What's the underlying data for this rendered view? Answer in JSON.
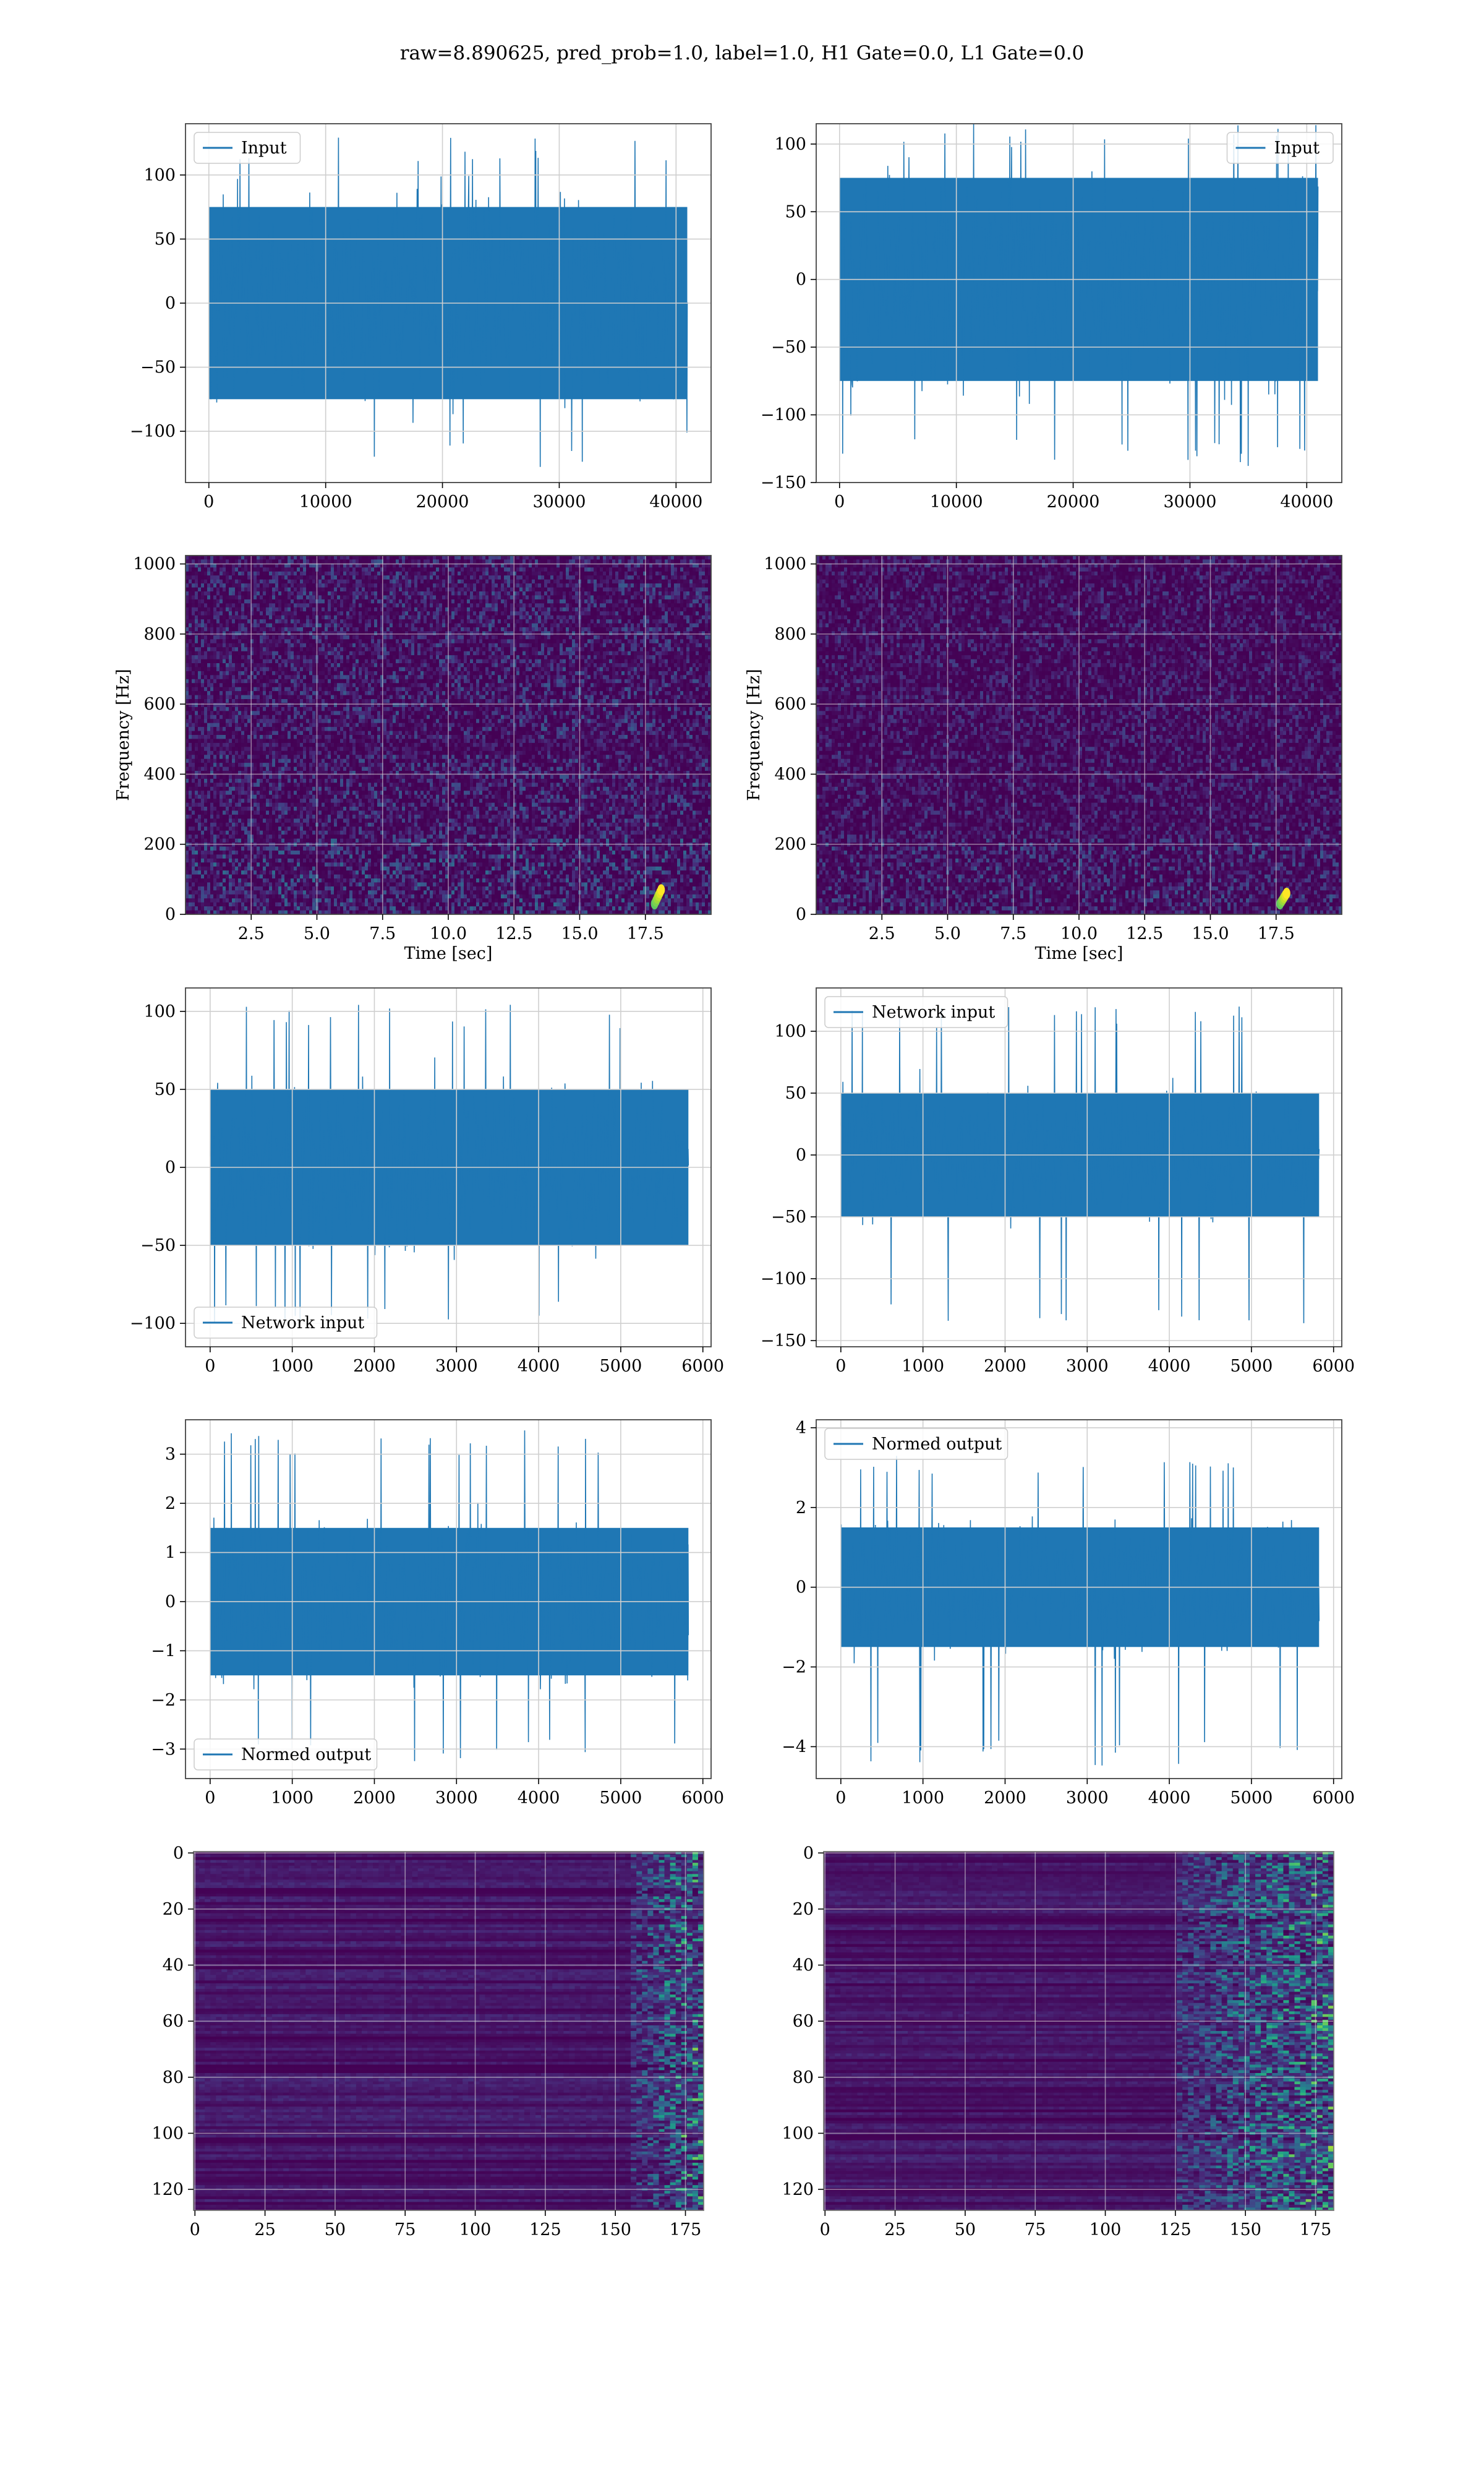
{
  "figure": {
    "title": "raw=8.890625, pred_prob=1.0, label=1.0, H1 Gate=0.0, L1 Gate=0.0"
  },
  "chart_data": [
    {
      "id": "h1-input",
      "type": "line",
      "legend_loc": "upper left",
      "series": [
        {
          "name": "Input",
          "color": "#1f77b4",
          "n_points": 40960,
          "summary": {
            "envelope": 75,
            "spike_max": 130,
            "spike_min": -128
          }
        }
      ],
      "xlim": [
        -2000,
        43000
      ],
      "ylim": [
        -140,
        140
      ],
      "xticks": [
        0,
        10000,
        20000,
        30000,
        40000
      ],
      "yticks": [
        -100,
        -50,
        0,
        50,
        100
      ],
      "xlabel": "",
      "ylabel": "",
      "grid": true
    },
    {
      "id": "l1-input",
      "type": "line",
      "legend_loc": "upper right",
      "series": [
        {
          "name": "Input",
          "color": "#1f77b4",
          "n_points": 40960,
          "summary": {
            "envelope": 75,
            "spike_max": 115,
            "spike_min": -138
          }
        }
      ],
      "xlim": [
        -2000,
        43000
      ],
      "ylim": [
        -150,
        115
      ],
      "xticks": [
        0,
        10000,
        20000,
        30000,
        40000
      ],
      "yticks": [
        -150,
        -100,
        -50,
        0,
        50,
        100
      ],
      "xlabel": "",
      "ylabel": "",
      "grid": true
    },
    {
      "id": "h1-spectrogram",
      "type": "heatmap",
      "colormap": "viridis",
      "xlim": [
        0,
        20
      ],
      "ylim": [
        0,
        1024
      ],
      "xticks": [
        2.5,
        5.0,
        7.5,
        10.0,
        12.5,
        15.0,
        17.5
      ],
      "yticks": [
        0,
        200,
        400,
        600,
        800,
        1000
      ],
      "xlabel": "Time [sec]",
      "ylabel": "Frequency [Hz]",
      "grid": true,
      "hot_spot": {
        "time_sec": 18.0,
        "freq_hz": [
          30,
          70
        ]
      }
    },
    {
      "id": "l1-spectrogram",
      "type": "heatmap",
      "colormap": "viridis",
      "xlim": [
        0,
        20
      ],
      "ylim": [
        0,
        1024
      ],
      "xticks": [
        2.5,
        5.0,
        7.5,
        10.0,
        12.5,
        15.0,
        17.5
      ],
      "yticks": [
        0,
        200,
        400,
        600,
        800,
        1000
      ],
      "xlabel": "Time [sec]",
      "ylabel": "Frequency [Hz]",
      "grid": true,
      "hot_spot": {
        "time_sec": 17.8,
        "freq_hz": [
          30,
          60
        ]
      }
    },
    {
      "id": "h1-network-input",
      "type": "line",
      "legend_loc": "lower left",
      "series": [
        {
          "name": "Network input",
          "color": "#1f77b4",
          "n_points": 5824,
          "summary": {
            "envelope": 50,
            "spike_max": 105,
            "spike_min": -100
          }
        }
      ],
      "xlim": [
        -300,
        6100
      ],
      "ylim": [
        -115,
        115
      ],
      "xticks": [
        0,
        1000,
        2000,
        3000,
        4000,
        5000,
        6000
      ],
      "yticks": [
        -100,
        -50,
        0,
        50,
        100
      ],
      "xlabel": "",
      "ylabel": "",
      "grid": true
    },
    {
      "id": "l1-network-input",
      "type": "line",
      "legend_loc": "upper left",
      "series": [
        {
          "name": "Network input",
          "color": "#1f77b4",
          "n_points": 5824,
          "summary": {
            "envelope": 50,
            "spike_max": 120,
            "spike_min": -142
          }
        }
      ],
      "xlim": [
        -300,
        6100
      ],
      "ylim": [
        -155,
        135
      ],
      "xticks": [
        0,
        1000,
        2000,
        3000,
        4000,
        5000,
        6000
      ],
      "yticks": [
        -150,
        -100,
        -50,
        0,
        50,
        100
      ],
      "xlabel": "",
      "ylabel": "",
      "grid": true
    },
    {
      "id": "h1-normed-output",
      "type": "line",
      "legend_loc": "lower left",
      "series": [
        {
          "name": "Normed output",
          "color": "#1f77b4",
          "n_points": 5824,
          "summary": {
            "envelope": 1.5,
            "spike_max": 3.5,
            "spike_min": -3.3
          }
        }
      ],
      "xlim": [
        -300,
        6100
      ],
      "ylim": [
        -3.6,
        3.7
      ],
      "xticks": [
        0,
        1000,
        2000,
        3000,
        4000,
        5000,
        6000
      ],
      "yticks": [
        -3,
        -2,
        -1,
        0,
        1,
        2,
        3
      ],
      "xlabel": "",
      "ylabel": "",
      "grid": true
    },
    {
      "id": "l1-normed-output",
      "type": "line",
      "legend_loc": "upper left",
      "series": [
        {
          "name": "Normed output",
          "color": "#1f77b4",
          "n_points": 5824,
          "summary": {
            "envelope": 1.5,
            "spike_max": 3.3,
            "spike_min": -4.5
          }
        }
      ],
      "xlim": [
        -300,
        6100
      ],
      "ylim": [
        -4.8,
        4.2
      ],
      "xticks": [
        0,
        1000,
        2000,
        3000,
        4000,
        5000,
        6000
      ],
      "yticks": [
        -4,
        -2,
        0,
        2,
        4
      ],
      "xlabel": "",
      "ylabel": "",
      "grid": true
    },
    {
      "id": "h1-feature-map",
      "type": "heatmap",
      "colormap": "viridis",
      "y_inverted": true,
      "xlim": [
        -0.5,
        181.5
      ],
      "ylim": [
        127.5,
        -0.5
      ],
      "xticks": [
        0,
        25,
        50,
        75,
        100,
        125,
        150,
        175
      ],
      "yticks": [
        0,
        20,
        40,
        60,
        80,
        100,
        120
      ],
      "xlabel": "",
      "ylabel": "",
      "grid": true,
      "active_columns": [
        155,
        182
      ]
    },
    {
      "id": "l1-feature-map",
      "type": "heatmap",
      "colormap": "viridis",
      "y_inverted": true,
      "xlim": [
        -0.5,
        181.5
      ],
      "ylim": [
        127.5,
        -0.5
      ],
      "xticks": [
        0,
        25,
        50,
        75,
        100,
        125,
        150,
        175
      ],
      "yticks": [
        0,
        20,
        40,
        60,
        80,
        100,
        120
      ],
      "xlabel": "",
      "ylabel": "",
      "grid": true,
      "active_columns": [
        125,
        182
      ]
    }
  ]
}
